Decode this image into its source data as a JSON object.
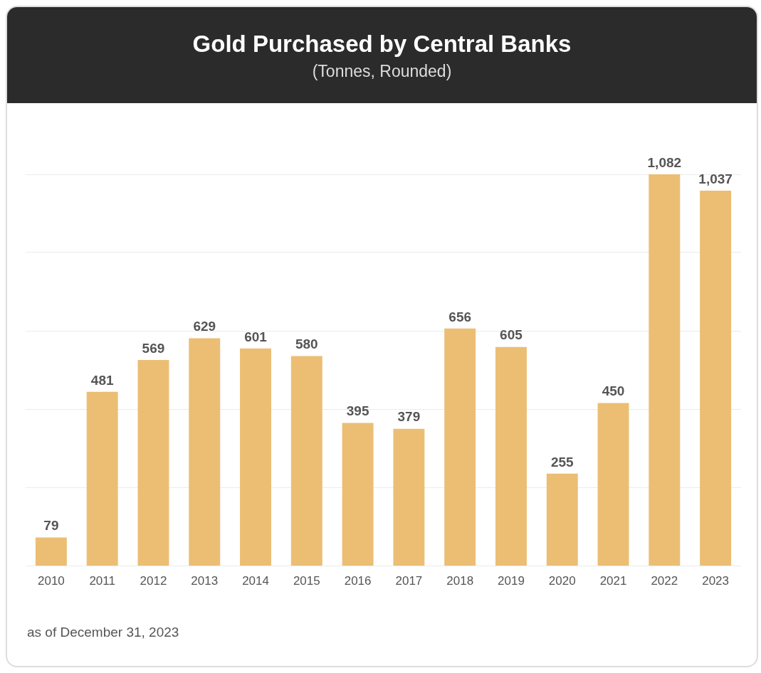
{
  "chart_data": {
    "type": "bar",
    "title": "Gold Purchased by Central Banks",
    "subtitle": "(Tonnes, Rounded)",
    "categories": [
      "2010",
      "2011",
      "2012",
      "2013",
      "2014",
      "2015",
      "2016",
      "2017",
      "2018",
      "2019",
      "2020",
      "2021",
      "2022",
      "2023"
    ],
    "values": [
      79,
      481,
      569,
      629,
      601,
      580,
      395,
      379,
      656,
      605,
      255,
      450,
      1082,
      1037
    ],
    "value_labels": [
      "79",
      "481",
      "569",
      "629",
      "601",
      "580",
      "395",
      "379",
      "656",
      "605",
      "255",
      "450",
      "1,082",
      "1,037"
    ],
    "color": "#ebbe74",
    "ylim": [
      0,
      1082
    ],
    "yticks": [
      {
        "value": 0,
        "label": null
      },
      {
        "value": 216,
        "label": null
      },
      {
        "value": 433,
        "label": null
      },
      {
        "value": 649,
        "label": null
      },
      {
        "value": 866,
        "label": null
      },
      {
        "value": 1082,
        "label": null
      }
    ],
    "grid": "y",
    "tick_labels": "x",
    "legend": false,
    "annotations": [
      "as of December 31, 2023"
    ]
  }
}
